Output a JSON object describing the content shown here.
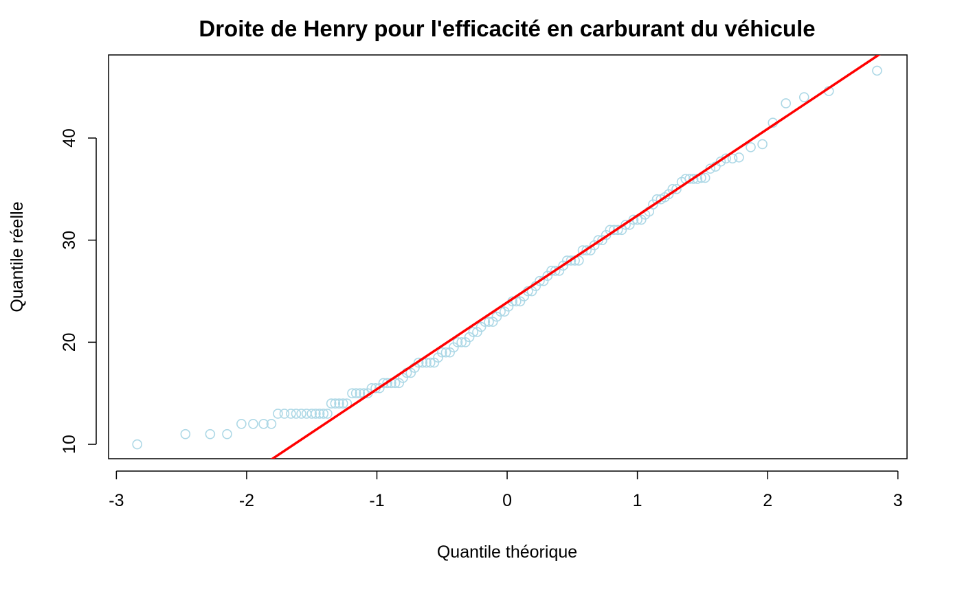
{
  "chart_data": {
    "type": "scatter",
    "title": "Droite de Henry pour l'efficacité en carburant du véhicule",
    "x_label": "Quantile théorique",
    "y_label": "Quantile réelle",
    "xlim": [
      -3.06,
      3.07
    ],
    "ylim": [
      8.59,
      48.14
    ],
    "xticks": [
      -3,
      -2,
      -1,
      0,
      1,
      2,
      3
    ],
    "yticks": [
      10,
      20,
      30,
      40
    ],
    "color": "#add8e6",
    "reference_line": {
      "intercept": 23.9,
      "slope": 8.5,
      "color": "#ff0000"
    },
    "x": [
      -2.84,
      -2.47,
      -2.28,
      -2.15,
      -2.04,
      -1.95,
      -1.87,
      -1.81,
      -1.76,
      -1.71,
      -1.66,
      -1.62,
      -1.58,
      -1.54,
      -1.5,
      -1.47,
      -1.44,
      -1.41,
      -1.38,
      -1.35,
      -1.32,
      -1.29,
      -1.26,
      -1.23,
      -1.19,
      -1.16,
      -1.13,
      -1.1,
      -1.07,
      -1.04,
      -1.01,
      -0.98,
      -0.95,
      -0.92,
      -0.89,
      -0.86,
      -0.83,
      -0.8,
      -0.77,
      -0.74,
      -0.71,
      -0.68,
      -0.65,
      -0.62,
      -0.59,
      -0.56,
      -0.53,
      -0.5,
      -0.47,
      -0.44,
      -0.41,
      -0.38,
      -0.35,
      -0.32,
      -0.29,
      -0.26,
      -0.23,
      -0.2,
      -0.17,
      -0.14,
      -0.11,
      -0.08,
      -0.05,
      -0.02,
      0.01,
      0.04,
      0.07,
      0.1,
      0.13,
      0.16,
      0.19,
      0.22,
      0.25,
      0.28,
      0.31,
      0.34,
      0.37,
      0.4,
      0.43,
      0.46,
      0.49,
      0.52,
      0.55,
      0.58,
      0.61,
      0.64,
      0.67,
      0.7,
      0.73,
      0.76,
      0.79,
      0.82,
      0.85,
      0.88,
      0.91,
      0.94,
      0.97,
      1.0,
      1.03,
      1.06,
      1.09,
      1.12,
      1.15,
      1.18,
      1.21,
      1.24,
      1.27,
      1.3,
      1.34,
      1.37,
      1.4,
      1.43,
      1.46,
      1.49,
      1.52,
      1.56,
      1.6,
      1.64,
      1.68,
      1.73,
      1.78,
      1.87,
      1.96,
      2.04,
      2.14,
      2.28,
      2.47,
      2.84
    ],
    "values": [
      10,
      11,
      11,
      11,
      12,
      12,
      12,
      12,
      13,
      13,
      13,
      13,
      13,
      13,
      13,
      13,
      13,
      13,
      13,
      14,
      14,
      14,
      14,
      14,
      15,
      15,
      15,
      15,
      15,
      15.5,
      15.5,
      15.5,
      16,
      16,
      16,
      16,
      16,
      16.5,
      17,
      17,
      17.5,
      18,
      18,
      18,
      18,
      18,
      18.5,
      19,
      19,
      19,
      19.5,
      20,
      20,
      20,
      20.5,
      21,
      21,
      21.5,
      22,
      22,
      22,
      22.5,
      23,
      23,
      23.5,
      24,
      24,
      24,
      24.5,
      25,
      25,
      25.5,
      26,
      26,
      26.5,
      27,
      27,
      27,
      27.5,
      28,
      28,
      28,
      28,
      29,
      29,
      29,
      29.5,
      30,
      30,
      30.5,
      31,
      31,
      31,
      31,
      31.5,
      31.5,
      32,
      32,
      32,
      32.5,
      32.8,
      33.5,
      34,
      34,
      34.2,
      34.5,
      35,
      35,
      35.7,
      36,
      36,
      36,
      36,
      36.1,
      36.1,
      37,
      37.2,
      37.7,
      38,
      38,
      38.1,
      39.1,
      39.4,
      41.5,
      43.4,
      44,
      44.6,
      46.6
    ]
  }
}
